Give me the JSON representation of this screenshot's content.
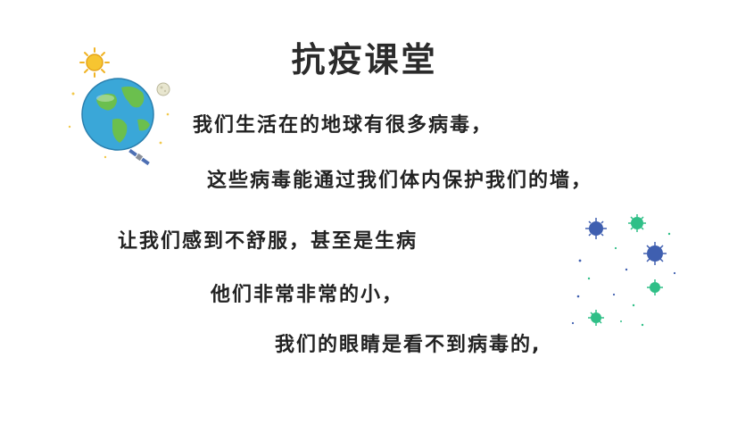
{
  "slide": {
    "title": "抗疫课堂",
    "lines": [
      "我们生活在的地球有很多病毒，",
      "这些病毒能通过我们体内保护我们的墙，",
      "让我们感到不舒服，甚至是生病",
      "他们非常非常的小，",
      "我们的眼睛是看不到病毒的,"
    ],
    "colors": {
      "text": "#222222",
      "ocean": "#3aa7d8",
      "land": "#6bbf4e",
      "sun": "#f7c531",
      "virus_blue": "#3f5fb0",
      "virus_green": "#2fbf87"
    },
    "icons": [
      "earth-icon",
      "sun-icon",
      "moon-icon",
      "satellite-icon",
      "virus-icon"
    ]
  }
}
